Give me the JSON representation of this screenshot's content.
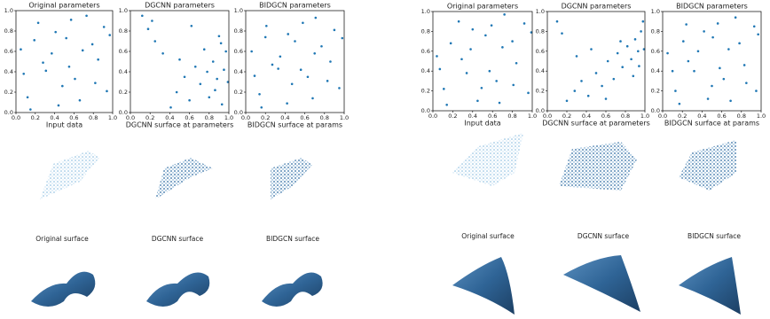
{
  "chart_data": [
    {
      "type": "scatter",
      "title": "Original parameters",
      "xlabel": "Input data",
      "color": "#1f77b4",
      "xlim": [
        0,
        1
      ],
      "ylim": [
        0,
        1
      ],
      "xticks": [
        {
          "value": 0,
          "label": "0.0"
        },
        0.2,
        0.4,
        0.6,
        0.8,
        {
          "value": 1,
          "label": "1.0"
        }
      ],
      "yticks": [
        {
          "value": 0,
          "label": "0.0"
        },
        0.2,
        0.4,
        0.6,
        0.8,
        {
          "value": 1,
          "label": "1.0"
        }
      ],
      "x": [
        0.05,
        0.12,
        0.23,
        0.31,
        0.44,
        0.52,
        0.61,
        0.73,
        0.85,
        0.94,
        0.08,
        0.19,
        0.37,
        0.48,
        0.57,
        0.66,
        0.79,
        0.91,
        0.15,
        0.28,
        0.41,
        0.55,
        0.69,
        0.82,
        0.97
      ],
      "y": [
        0.62,
        0.15,
        0.88,
        0.41,
        0.07,
        0.73,
        0.33,
        0.95,
        0.52,
        0.21,
        0.38,
        0.71,
        0.58,
        0.26,
        0.91,
        0.12,
        0.67,
        0.84,
        0.03,
        0.49,
        0.79,
        0.45,
        0.61,
        0.29,
        0.76
      ]
    },
    {
      "type": "scatter",
      "title": "DGCNN parameters",
      "xlabel": "DGCNN surface at parameters",
      "color": "#1f77b4",
      "xlim": [
        0,
        1
      ],
      "ylim": [
        0,
        1
      ],
      "xticks": [
        {
          "value": 0,
          "label": "0.0"
        },
        0.2,
        0.4,
        0.6,
        0.8,
        {
          "value": 1,
          "label": "1.0"
        }
      ],
      "yticks": [
        {
          "value": 0,
          "label": "0.0"
        },
        0.2,
        0.4,
        0.6,
        0.8,
        {
          "value": 1,
          "label": "1.0"
        }
      ],
      "x": [
        0.12,
        0.18,
        0.25,
        0.33,
        0.41,
        0.47,
        0.55,
        0.6,
        0.66,
        0.71,
        0.75,
        0.8,
        0.84,
        0.88,
        0.9,
        0.93,
        0.95,
        0.97,
        0.22,
        0.5,
        0.62,
        0.78,
        0.86,
        0.92,
        0.99
      ],
      "y": [
        0.95,
        0.82,
        0.7,
        0.58,
        0.05,
        0.2,
        0.35,
        0.12,
        0.45,
        0.28,
        0.62,
        0.15,
        0.5,
        0.33,
        0.75,
        0.08,
        0.42,
        0.6,
        0.9,
        0.52,
        0.85,
        0.4,
        0.22,
        0.68,
        0.3
      ]
    },
    {
      "type": "scatter",
      "title": "BIDGCN parameters",
      "xlabel": "BIDGCN surface at params",
      "color": "#1f77b4",
      "xlim": [
        0,
        1
      ],
      "ylim": [
        0,
        1
      ],
      "xticks": [
        {
          "value": 0,
          "label": "0.0"
        },
        0.2,
        0.4,
        0.6,
        0.8,
        {
          "value": 1,
          "label": "1.0"
        }
      ],
      "yticks": [
        {
          "value": 0,
          "label": "0.0"
        },
        0.2,
        0.4,
        0.6,
        0.8,
        {
          "value": 1,
          "label": "1.0"
        }
      ],
      "x": [
        0.06,
        0.14,
        0.21,
        0.33,
        0.42,
        0.5,
        0.63,
        0.71,
        0.86,
        0.95,
        0.09,
        0.2,
        0.35,
        0.47,
        0.58,
        0.68,
        0.77,
        0.9,
        0.16,
        0.27,
        0.43,
        0.56,
        0.7,
        0.83,
        0.98
      ],
      "y": [
        0.6,
        0.18,
        0.85,
        0.43,
        0.09,
        0.7,
        0.35,
        0.93,
        0.5,
        0.24,
        0.36,
        0.74,
        0.55,
        0.28,
        0.88,
        0.14,
        0.65,
        0.81,
        0.05,
        0.47,
        0.77,
        0.42,
        0.58,
        0.31,
        0.73
      ]
    },
    {
      "type": "scatter",
      "title": "Original parameters",
      "xlabel": "Input data",
      "color": "#1f77b4",
      "xlim": [
        0,
        1
      ],
      "ylim": [
        0,
        1
      ],
      "xticks": [
        {
          "value": 0,
          "label": "0.0"
        },
        0.2,
        0.4,
        0.6,
        0.8,
        {
          "value": 1,
          "label": "1.0"
        }
      ],
      "yticks": [
        {
          "value": 0,
          "label": "0.0"
        },
        0.2,
        0.4,
        0.6,
        0.8,
        {
          "value": 1,
          "label": "1.0"
        }
      ],
      "x": [
        0.04,
        0.11,
        0.26,
        0.34,
        0.45,
        0.53,
        0.64,
        0.72,
        0.84,
        0.96,
        0.07,
        0.18,
        0.38,
        0.49,
        0.59,
        0.67,
        0.8,
        0.92,
        0.14,
        0.29,
        0.4,
        0.57,
        0.7,
        0.81,
        0.99
      ],
      "y": [
        0.55,
        0.22,
        0.9,
        0.38,
        0.1,
        0.76,
        0.3,
        0.97,
        0.48,
        0.18,
        0.42,
        0.68,
        0.62,
        0.23,
        0.86,
        0.08,
        0.7,
        0.88,
        0.06,
        0.52,
        0.82,
        0.4,
        0.64,
        0.26,
        0.79
      ]
    },
    {
      "type": "scatter",
      "title": "DGCNN parameters",
      "xlabel": "DGCNN surface at parameters",
      "color": "#1f77b4",
      "xlim": [
        0,
        1
      ],
      "ylim": [
        0,
        1
      ],
      "xticks": [
        {
          "value": 0,
          "label": "0.0"
        },
        0.2,
        0.4,
        0.6,
        0.8,
        {
          "value": 1,
          "label": "1.0"
        }
      ],
      "yticks": [
        {
          "value": 0,
          "label": "0.0"
        },
        0.2,
        0.4,
        0.6,
        0.8,
        {
          "value": 1,
          "label": "1.0"
        }
      ],
      "x": [
        0.1,
        0.15,
        0.2,
        0.28,
        0.35,
        0.42,
        0.5,
        0.56,
        0.62,
        0.68,
        0.72,
        0.77,
        0.82,
        0.86,
        0.9,
        0.93,
        0.96,
        0.98,
        0.3,
        0.45,
        0.6,
        0.75,
        0.88,
        0.94,
        0.99
      ],
      "y": [
        0.9,
        0.78,
        0.1,
        0.2,
        0.3,
        0.15,
        0.38,
        0.25,
        0.5,
        0.32,
        0.58,
        0.44,
        0.65,
        0.52,
        0.72,
        0.6,
        0.8,
        0.9,
        0.55,
        0.62,
        0.12,
        0.7,
        0.35,
        0.45,
        0.62
      ]
    },
    {
      "type": "scatter",
      "title": "BIDGCN parameters",
      "xlabel": "BIDGCN surface at params",
      "color": "#1f77b4",
      "xlim": [
        0,
        1
      ],
      "ylim": [
        0,
        1
      ],
      "xticks": [
        {
          "value": 0,
          "label": "0.0"
        },
        0.2,
        0.4,
        0.6,
        0.8,
        {
          "value": 1,
          "label": "1.0"
        }
      ],
      "yticks": [
        {
          "value": 0,
          "label": "0.0"
        },
        0.2,
        0.4,
        0.6,
        0.8,
        {
          "value": 1,
          "label": "1.0"
        }
      ],
      "x": [
        0.05,
        0.13,
        0.24,
        0.32,
        0.46,
        0.51,
        0.62,
        0.74,
        0.83,
        0.95,
        0.1,
        0.21,
        0.36,
        0.5,
        0.56,
        0.69,
        0.78,
        0.93,
        0.17,
        0.26,
        0.42,
        0.58,
        0.67,
        0.85,
        0.97
      ],
      "y": [
        0.58,
        0.2,
        0.87,
        0.4,
        0.12,
        0.74,
        0.32,
        0.94,
        0.46,
        0.2,
        0.4,
        0.7,
        0.6,
        0.25,
        0.88,
        0.1,
        0.68,
        0.85,
        0.07,
        0.5,
        0.8,
        0.43,
        0.62,
        0.28,
        0.77
      ]
    }
  ],
  "captions": [
    "Original surface",
    "DGCNN surface",
    "BIDGCN surface",
    "Original surface",
    "DGCNN surface",
    "BIDGCN surface"
  ]
}
